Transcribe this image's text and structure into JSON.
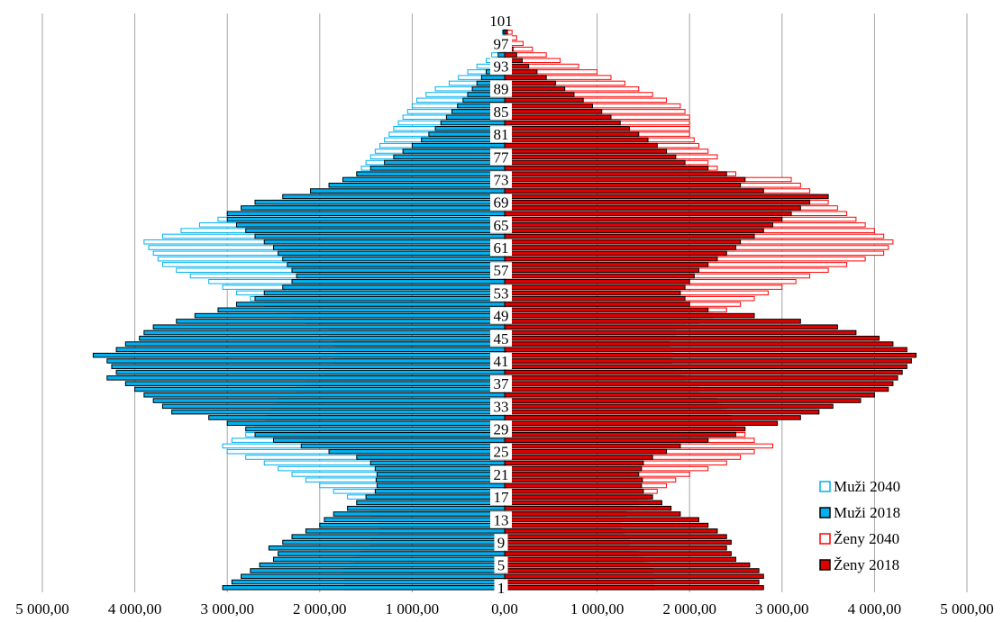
{
  "chart_data": {
    "type": "bar",
    "orientation": "horizontal",
    "style": "population-pyramid",
    "title": "",
    "xlabel": "",
    "ylabel": "",
    "xlim": [
      -5000,
      5000
    ],
    "x_ticks": [
      -5000,
      -4000,
      -3000,
      -2000,
      -1000,
      0,
      1000,
      2000,
      3000,
      4000,
      5000
    ],
    "x_tick_labels": [
      "5 000,00",
      "4 000,00",
      "3 000,00",
      "2 000,00",
      "1 000,00",
      "0,00",
      "1 000,00",
      "2 000,00",
      "3 000,00",
      "4 000,00",
      "5 000,00"
    ],
    "y_tick_labels": [
      "1",
      "5",
      "9",
      "13",
      "17",
      "21",
      "25",
      "29",
      "33",
      "37",
      "41",
      "45",
      "49",
      "53",
      "57",
      "61",
      "65",
      "69",
      "73",
      "77",
      "81",
      "85",
      "89",
      "93",
      "97",
      "101"
    ],
    "grid": {
      "vertical": true,
      "horizontal": false
    },
    "legend_position": "bottom-right",
    "ages": [
      1,
      2,
      3,
      4,
      5,
      6,
      7,
      8,
      9,
      10,
      11,
      12,
      13,
      14,
      15,
      16,
      17,
      18,
      19,
      20,
      21,
      22,
      23,
      24,
      25,
      26,
      27,
      28,
      29,
      30,
      31,
      32,
      33,
      34,
      35,
      36,
      37,
      38,
      39,
      40,
      41,
      42,
      43,
      44,
      45,
      46,
      47,
      48,
      49,
      50,
      51,
      52,
      53,
      54,
      55,
      56,
      57,
      58,
      59,
      60,
      61,
      62,
      63,
      64,
      65,
      66,
      67,
      68,
      69,
      70,
      71,
      72,
      73,
      74,
      75,
      76,
      77,
      78,
      79,
      80,
      81,
      82,
      83,
      84,
      85,
      86,
      87,
      88,
      89,
      90,
      91,
      92,
      93,
      94,
      95,
      96,
      97,
      98,
      99,
      100,
      101
    ],
    "series": [
      {
        "name": "Muži 2040",
        "side": "left",
        "fill": "#ffffff",
        "stroke": "#00b0f0",
        "values": [
          1730,
          1730,
          1750,
          1740,
          1680,
          1620,
          1560,
          1510,
          1450,
          1400,
          1350,
          1350,
          1400,
          1450,
          1500,
          1600,
          1700,
          1850,
          2000,
          2150,
          2300,
          2450,
          2600,
          2800,
          3000,
          3050,
          2950,
          2800,
          2700,
          2600,
          2580,
          2550,
          2500,
          2450,
          2350,
          2250,
          2150,
          2000,
          1950,
          1900,
          1850,
          1800,
          1820,
          1850,
          1800,
          1900,
          2000,
          2150,
          2300,
          2450,
          2600,
          2750,
          2900,
          3050,
          3200,
          3400,
          3550,
          3700,
          3750,
          3800,
          3850,
          3900,
          3700,
          3500,
          3300,
          3100,
          2900,
          2700,
          2500,
          2300,
          2100,
          1900,
          1700,
          1600,
          1550,
          1500,
          1450,
          1400,
          1350,
          1300,
          1250,
          1200,
          1150,
          1100,
          1050,
          1000,
          950,
          850,
          750,
          600,
          500,
          400,
          300,
          200,
          140,
          90,
          60,
          40,
          25,
          15,
          10
        ]
      },
      {
        "name": "Muži 2018",
        "side": "left",
        "fill": "#00b0f0",
        "stroke": "#000000",
        "values": [
          3050,
          2950,
          2850,
          2750,
          2650,
          2500,
          2450,
          2550,
          2400,
          2300,
          2150,
          2000,
          1950,
          1850,
          1700,
          1600,
          1500,
          1400,
          1380,
          1390,
          1380,
          1400,
          1450,
          1600,
          1900,
          2200,
          2500,
          2700,
          2800,
          3000,
          3200,
          3600,
          3700,
          3800,
          3900,
          4000,
          4100,
          4300,
          4200,
          4250,
          4300,
          4450,
          4200,
          4100,
          3950,
          3900,
          3800,
          3550,
          3350,
          3100,
          2900,
          2700,
          2600,
          2400,
          2300,
          2250,
          2300,
          2350,
          2400,
          2450,
          2500,
          2600,
          2700,
          2800,
          2900,
          3000,
          3000,
          2850,
          2700,
          2400,
          2100,
          1900,
          1750,
          1600,
          1450,
          1300,
          1200,
          1100,
          1000,
          900,
          820,
          750,
          690,
          630,
          570,
          510,
          450,
          400,
          350,
          300,
          250,
          200,
          150,
          100,
          70,
          40,
          30,
          20,
          15,
          10,
          50
        ]
      },
      {
        "name": "Ženy 2040",
        "side": "right",
        "fill": "#ffffff",
        "stroke": "#ff0000",
        "values": [
          1620,
          1620,
          1620,
          1600,
          1560,
          1510,
          1450,
          1400,
          1350,
          1300,
          1280,
          1260,
          1280,
          1320,
          1380,
          1450,
          1550,
          1650,
          1750,
          1850,
          2000,
          2200,
          2400,
          2550,
          2700,
          2900,
          2700,
          2600,
          2500,
          2450,
          2450,
          2400,
          2350,
          2300,
          2250,
          2100,
          2000,
          1950,
          1900,
          1850,
          1800,
          1820,
          1800,
          1780,
          1800,
          1850,
          1950,
          2100,
          2250,
          2400,
          2550,
          2700,
          2850,
          3000,
          3150,
          3300,
          3500,
          3700,
          3900,
          4100,
          4150,
          4200,
          4100,
          4000,
          3900,
          3800,
          3700,
          3600,
          3500,
          3400,
          3300,
          3200,
          3100,
          2500,
          2300,
          2200,
          2300,
          2200,
          2100,
          2050,
          2000,
          2000,
          2000,
          2000,
          1950,
          1900,
          1750,
          1600,
          1450,
          1300,
          1150,
          1000,
          800,
          600,
          450,
          300,
          200,
          130,
          80,
          50,
          30
        ]
      },
      {
        "name": "Ženy 2018",
        "side": "right",
        "fill": "#e00000",
        "stroke": "#000000",
        "values": [
          2800,
          2750,
          2800,
          2750,
          2650,
          2500,
          2450,
          2400,
          2450,
          2400,
          2300,
          2200,
          2100,
          1900,
          1800,
          1700,
          1600,
          1500,
          1480,
          1490,
          1450,
          1480,
          1500,
          1600,
          1750,
          1900,
          2200,
          2500,
          2600,
          2950,
          3200,
          3400,
          3550,
          3850,
          4000,
          4150,
          4200,
          4250,
          4300,
          4350,
          4400,
          4450,
          4350,
          4200,
          4050,
          3800,
          3600,
          3200,
          2700,
          2200,
          2000,
          1950,
          1900,
          1950,
          2000,
          2050,
          2100,
          2200,
          2300,
          2400,
          2500,
          2550,
          2700,
          2800,
          2900,
          3000,
          3100,
          3200,
          3300,
          3500,
          2800,
          2550,
          2600,
          2400,
          2200,
          1950,
          1850,
          1750,
          1650,
          1550,
          1450,
          1350,
          1250,
          1150,
          1050,
          950,
          850,
          750,
          650,
          550,
          450,
          350,
          260,
          190,
          130,
          90,
          60,
          40,
          30,
          20,
          80
        ]
      }
    ]
  }
}
